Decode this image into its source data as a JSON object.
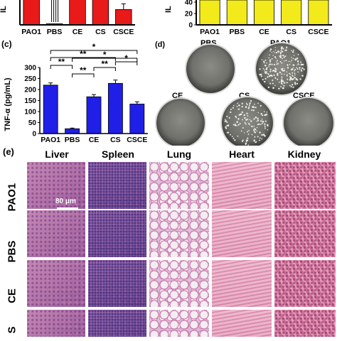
{
  "panels": {
    "a": {
      "ylabel_fragment": "IL",
      "ytick": "",
      "categories": [
        "PAO1",
        "PBS",
        "CE",
        "CS",
        "CSCE"
      ]
    },
    "b": {
      "ylabel_fragment": "IL",
      "yticks": [
        "40",
        "20",
        "0"
      ],
      "categories": [
        "PAO1",
        "PBS",
        "CE",
        "CS",
        "CSCE"
      ]
    },
    "c": {
      "label": "(c)",
      "ylabel": "TNF-α (pg/mL)",
      "categories": [
        "PAO1",
        "PBS",
        "CE",
        "CS",
        "CSCE"
      ],
      "sig_labels": [
        "*",
        "**",
        "*",
        "**",
        "**",
        "**",
        "*"
      ]
    },
    "d": {
      "label": "(d)",
      "dishes": [
        "PBS",
        "PAO1",
        "CE",
        "CS",
        "CSCE"
      ]
    },
    "e": {
      "label": "(e)",
      "columns": [
        "Liver",
        "Spleen",
        "Lung",
        "Heart",
        "Kidney"
      ],
      "rows": [
        "PAO1",
        "PBS",
        "CE",
        "S"
      ],
      "scale_bar": "80 μm"
    }
  },
  "chart_data": [
    {
      "type": "bar",
      "title": "",
      "ylabel": "TNF-α (pg/mL)",
      "xlabel": "",
      "categories": [
        "PAO1",
        "PBS",
        "CE",
        "CS",
        "CSCE"
      ],
      "values": [
        220,
        22,
        167,
        228,
        134
      ],
      "errors": [
        10,
        3,
        10,
        15,
        10
      ],
      "ylim": [
        0,
        300
      ],
      "yticks": [
        0,
        50,
        100,
        150,
        200,
        250,
        300
      ],
      "color": "#1f1fe8"
    },
    {
      "type": "bar",
      "title": "",
      "ylabel": "IL",
      "categories": [
        "PAO1",
        "PBS",
        "CE",
        "CS",
        "CSCE"
      ],
      "values": [
        100,
        4,
        100,
        100,
        54
      ],
      "errors": [
        6,
        1,
        6,
        4,
        8
      ],
      "color": "#e81a1a"
    },
    {
      "type": "bar",
      "title": "",
      "ylabel": "IL",
      "categories": [
        "PAO1",
        "PBS",
        "CE",
        "CS",
        "CSCE"
      ],
      "values": [
        60,
        60,
        60,
        60,
        60
      ],
      "ylim": [
        0,
        60
      ],
      "yticks": [
        0,
        20,
        40
      ],
      "color": "#f2ea1a"
    }
  ]
}
